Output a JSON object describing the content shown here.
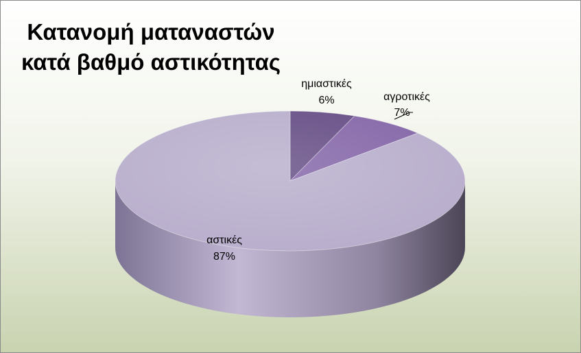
{
  "chart_data": {
    "type": "pie",
    "title_lines": [
      "Κατανομή ματαναστών",
      "κατά βαθμό αστικότητας"
    ],
    "slices": [
      {
        "label": "ημιαστικές",
        "value": 6,
        "value_label": "6%",
        "color": "#654d85"
      },
      {
        "label": "αγροτικές",
        "value": 7,
        "value_label": "7%",
        "color": "#8466a8"
      },
      {
        "label": "αστικές",
        "value": 87,
        "value_label": "87%",
        "color": "#b8aecc"
      }
    ]
  }
}
